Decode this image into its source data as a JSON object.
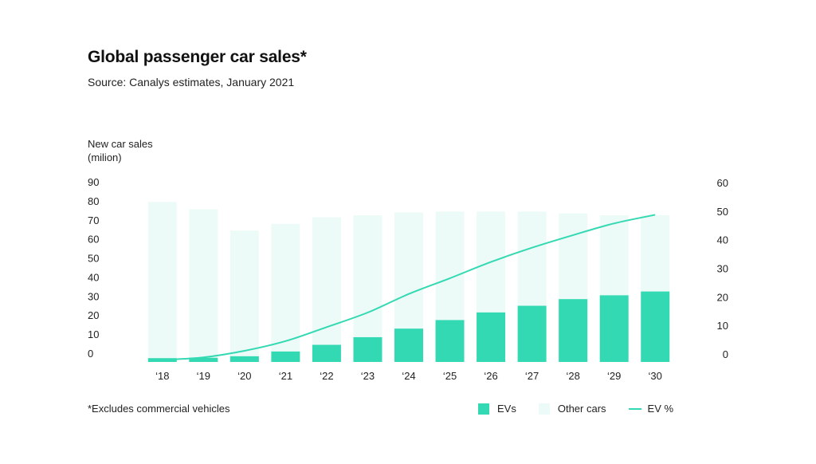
{
  "title": "Global passenger car sales*",
  "subtitle": "Source: Canalys estimates, January 2021",
  "footnote": "*Excludes commercial vehicles",
  "colors": {
    "evs": "#33d9b2",
    "other_cars": "#ecfbf7",
    "ev_pct_line": "#33d9b2",
    "text": "#222222"
  },
  "legend": [
    {
      "key": "evs",
      "label": "EVs",
      "kind": "box"
    },
    {
      "key": "other_cars",
      "label": "Other cars",
      "kind": "box"
    },
    {
      "key": "ev_pct",
      "label": "EV %",
      "kind": "line"
    }
  ],
  "chart_data": {
    "type": "bar",
    "stacked": true,
    "ylabel_lines": [
      "New car sales",
      "(milion)"
    ],
    "categories": [
      "‘18",
      "‘19",
      "‘20",
      "‘21",
      "‘22",
      "‘23",
      "‘24",
      "‘25",
      "‘26",
      "‘27",
      "‘28",
      "‘29",
      "‘30"
    ],
    "ylim": [
      0,
      90
    ],
    "yticks": [
      0,
      10,
      20,
      30,
      40,
      50,
      60,
      70,
      80,
      90
    ],
    "y2lim": [
      0,
      60
    ],
    "y2ticks": [
      0,
      10,
      20,
      30,
      40,
      50,
      60
    ],
    "series": [
      {
        "key": "evs",
        "name": "EVs",
        "type": "bar",
        "axis": "left",
        "values": [
          2,
          2.2,
          3,
          5.5,
          9,
          13,
          17.5,
          22,
          26,
          29.5,
          33,
          35,
          37
        ]
      },
      {
        "key": "other_cars",
        "name": "Other cars",
        "type": "bar",
        "axis": "left",
        "values": [
          82,
          78,
          66,
          67,
          67,
          64,
          61,
          57,
          53,
          49.5,
          45,
          42,
          40
        ]
      },
      {
        "key": "ev_pct",
        "name": "EV %",
        "type": "line",
        "axis": "right",
        "values": [
          0.7,
          1.6,
          3.9,
          7.3,
          12.2,
          17.3,
          23.8,
          29.3,
          35.0,
          40.0,
          44.4,
          48.5,
          51.5
        ]
      }
    ],
    "grid": false,
    "legend_position": "bottom-right"
  }
}
